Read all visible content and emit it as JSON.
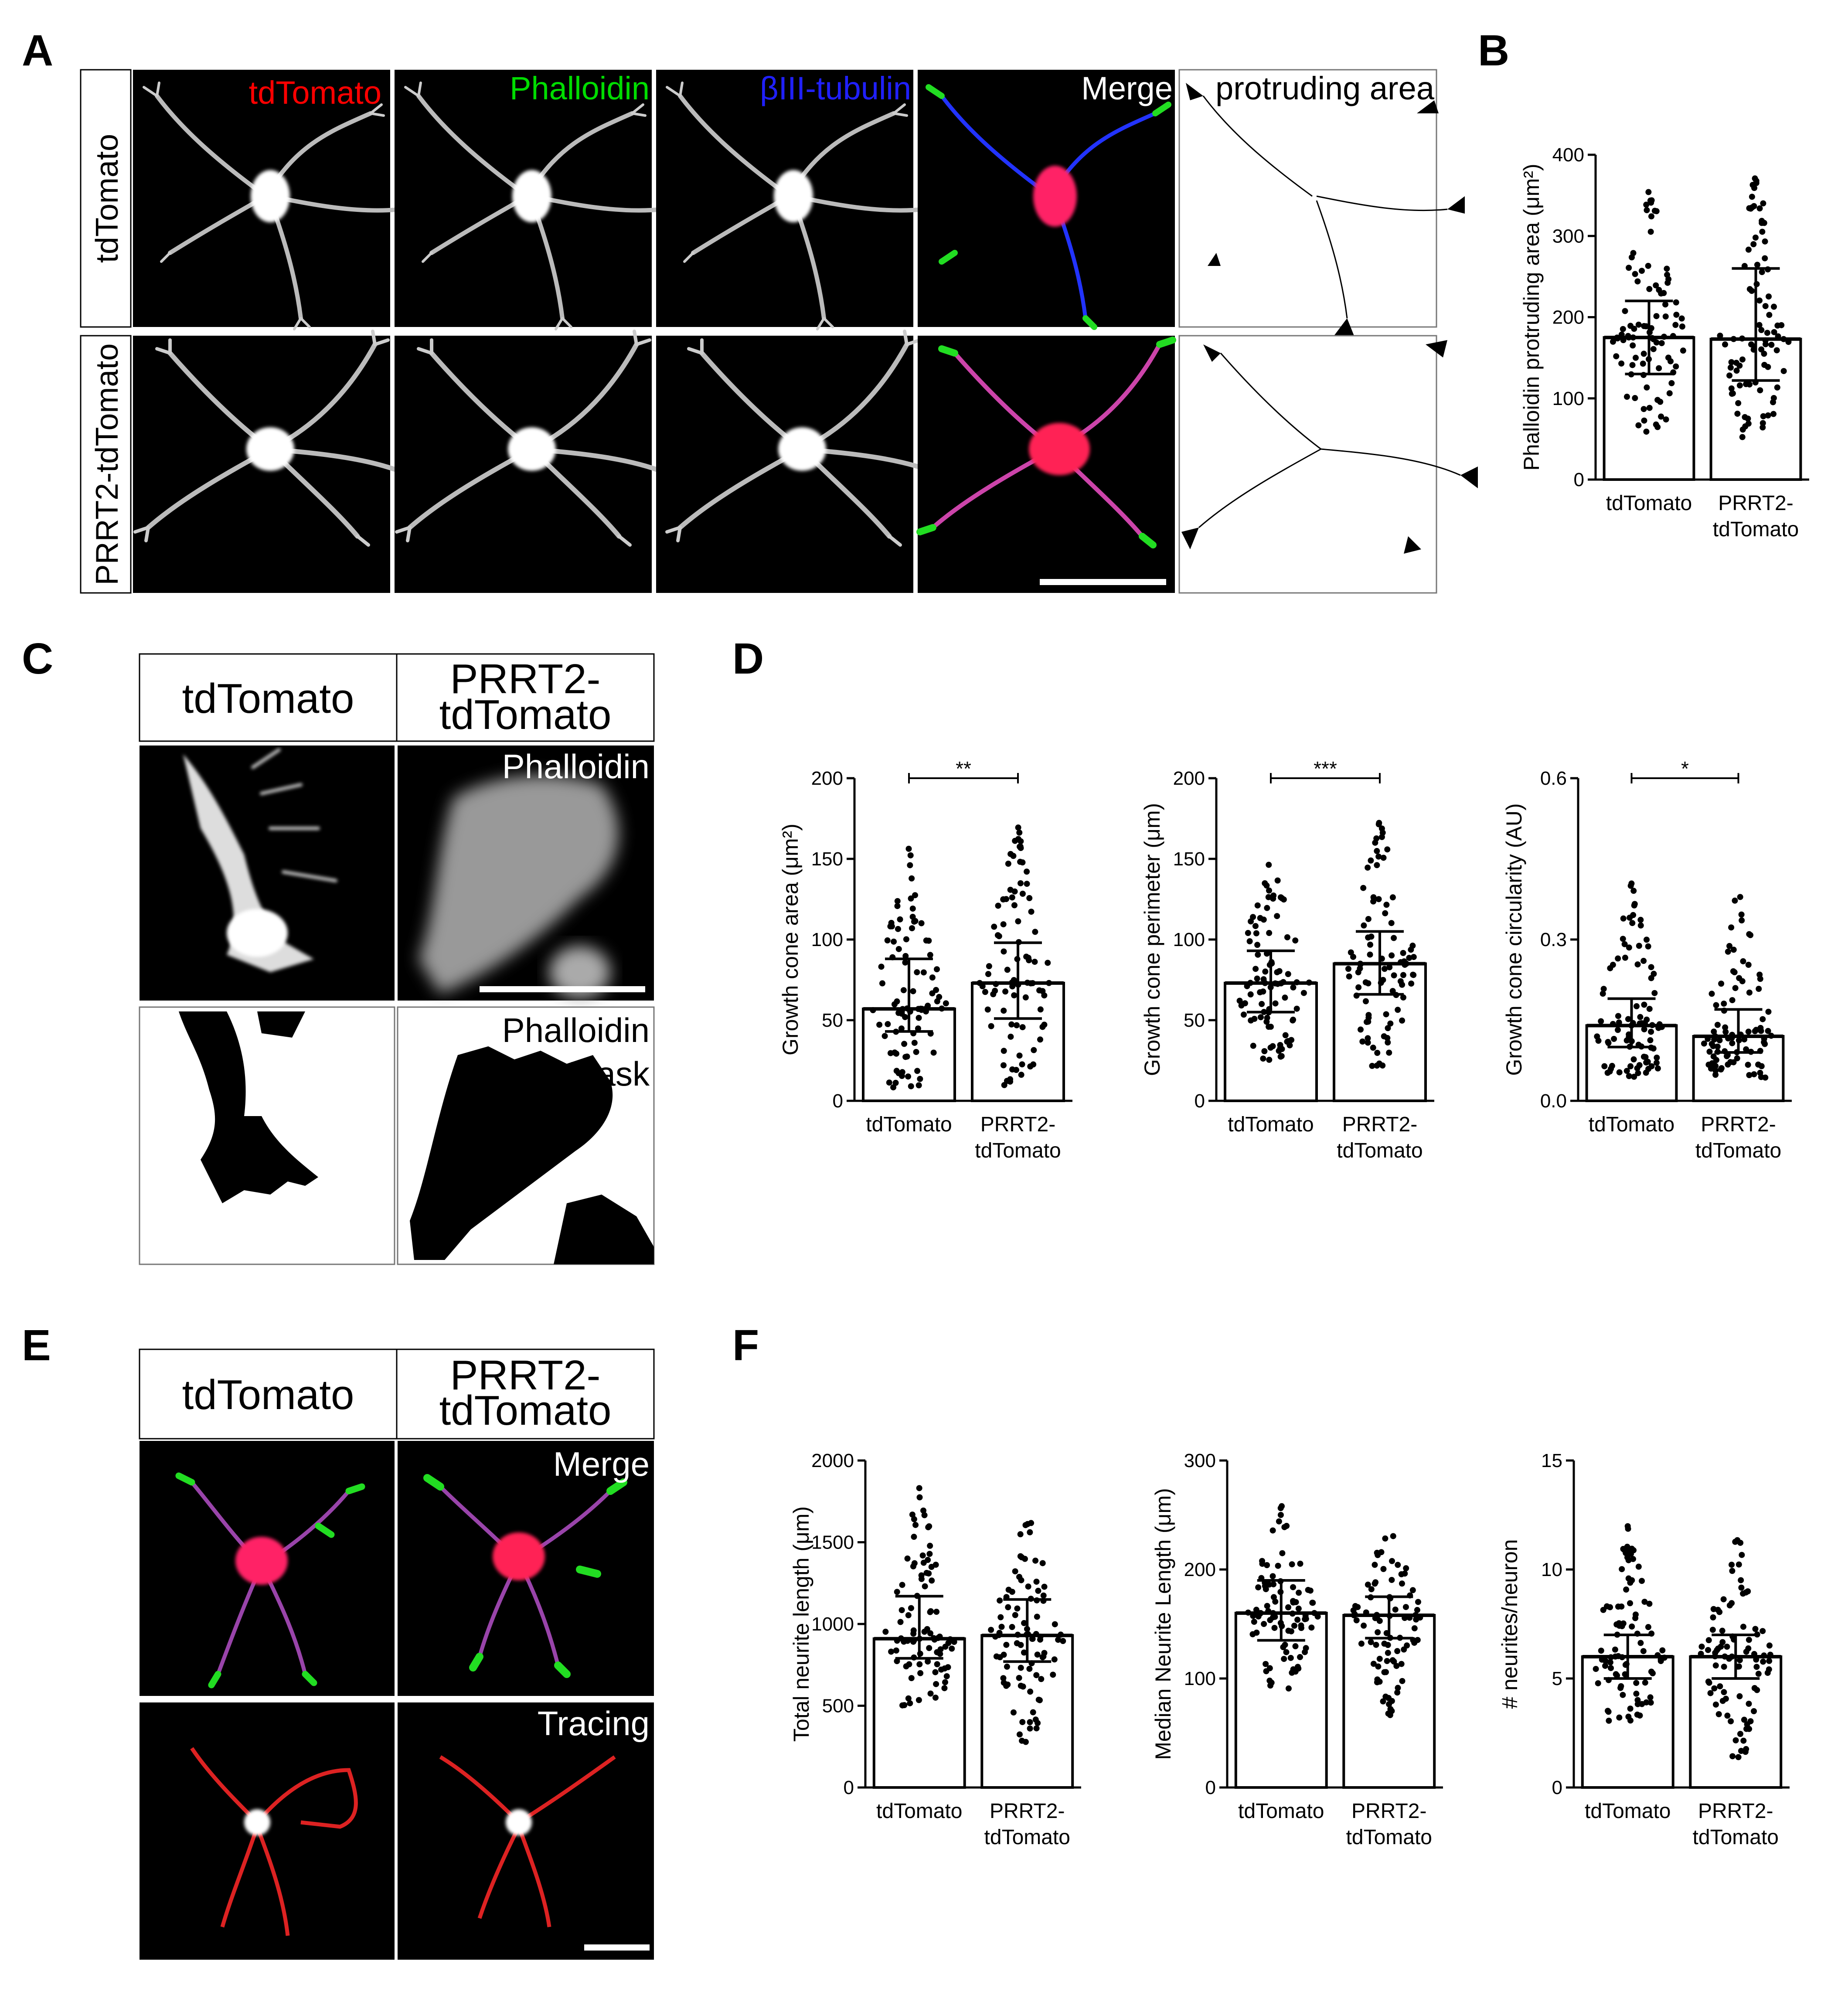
{
  "panel_letters": [
    "A",
    "B",
    "C",
    "D",
    "E",
    "F"
  ],
  "panelA": {
    "row_labels": [
      "tdTomato",
      "PRRT2-tdTomato"
    ],
    "channels": [
      {
        "label": "tdTomato",
        "color": "#ff0000"
      },
      {
        "label": "Phalloidin",
        "color": "#00dd00"
      },
      {
        "label": "βIII-tubulin",
        "color": "#2020ff"
      },
      {
        "label": "Merge",
        "color": "#ffffff"
      },
      {
        "label": "protruding area",
        "color": "#000000"
      }
    ]
  },
  "panelC": {
    "headers": [
      "tdTomato",
      "PRRT2-",
      "tdTomato"
    ],
    "labels": {
      "phalloidin": "Phalloidin",
      "mask1": "Phalloidin",
      "mask2": "Mask"
    }
  },
  "panelE": {
    "headers": [
      "tdTomato",
      "PRRT2-",
      "tdTomato"
    ],
    "labels": {
      "merge": "Merge",
      "tracing": "Tracing"
    }
  },
  "chart_data": [
    {
      "id": "B",
      "type": "bar",
      "categories": [
        "tdTomato",
        "PRRT2-tdTomato"
      ],
      "ylabel": "Phalloidin protruding area (μm²)",
      "ylim": [
        0,
        400
      ],
      "yticks": [
        0,
        100,
        200,
        300,
        400
      ],
      "series": [
        {
          "values": [
            175,
            173
          ]
        }
      ],
      "error": [
        [
          130,
          220
        ],
        [
          122,
          260
        ]
      ],
      "points_range": [
        [
          58,
          370
        ],
        [
          48,
          382
        ]
      ],
      "significance": ""
    },
    {
      "id": "D1",
      "type": "bar",
      "categories": [
        "tdTomato",
        "PRRT2-tdTomato"
      ],
      "ylabel": "Growth cone area (μm²)",
      "ylim": [
        0,
        200
      ],
      "yticks": [
        0,
        50,
        100,
        150,
        200
      ],
      "series": [
        {
          "values": [
            57,
            73
          ]
        }
      ],
      "error": [
        [
          43,
          88
        ],
        [
          51,
          98
        ]
      ],
      "points_range": [
        [
          8,
          157
        ],
        [
          8,
          172
        ]
      ],
      "significance": "**"
    },
    {
      "id": "D2",
      "type": "bar",
      "categories": [
        "tdTomato",
        "PRRT2-tdTomato"
      ],
      "ylabel": "Growth cone perimeter (μm)",
      "ylim": [
        0,
        200
      ],
      "yticks": [
        0,
        50,
        100,
        150,
        200
      ],
      "series": [
        {
          "values": [
            73,
            85
          ]
        }
      ],
      "error": [
        [
          55,
          93
        ],
        [
          66,
          105
        ]
      ],
      "points_range": [
        [
          25,
          153
        ],
        [
          20,
          175
        ]
      ],
      "significance": "***"
    },
    {
      "id": "D3",
      "type": "bar",
      "categories": [
        "tdTomato",
        "PRRT2-tdTomato"
      ],
      "ylabel": "Growth cone circularity (AU)",
      "ylim": [
        0,
        0.6
      ],
      "yticks": [
        "0.0",
        "0.3",
        "0.6"
      ],
      "series": [
        {
          "values": [
            0.14,
            0.12
          ]
        }
      ],
      "error": [
        [
          0.1,
          0.19
        ],
        [
          0.09,
          0.17
        ]
      ],
      "points_range": [
        [
          0.04,
          0.41
        ],
        [
          0.04,
          0.4
        ]
      ],
      "significance": "*"
    },
    {
      "id": "F1",
      "type": "bar",
      "categories": [
        "tdTomato",
        "PRRT2-tdTomato"
      ],
      "ylabel": "Total neurite length (μm)",
      "ylim": [
        0,
        2000
      ],
      "yticks": [
        0,
        500,
        1000,
        1500,
        2000
      ],
      "series": [
        {
          "values": [
            910,
            930
          ]
        }
      ],
      "error": [
        [
          790,
          1170
        ],
        [
          770,
          1150
        ]
      ],
      "points_range": [
        [
          500,
          1840
        ],
        [
          260,
          1700
        ]
      ],
      "significance": ""
    },
    {
      "id": "F2",
      "type": "bar",
      "categories": [
        "tdTomato",
        "PRRT2-tdTomato"
      ],
      "ylabel": "Median Neurite Length (μm)",
      "ylim": [
        0,
        300
      ],
      "yticks": [
        0,
        100,
        200,
        300
      ],
      "series": [
        {
          "values": [
            160,
            158
          ]
        }
      ],
      "error": [
        [
          135,
          190
        ],
        [
          137,
          175
        ]
      ],
      "points_range": [
        [
          90,
          262
        ],
        [
          63,
          250
        ]
      ],
      "significance": ""
    },
    {
      "id": "F3",
      "type": "bar",
      "categories": [
        "tdTomato",
        "PRRT2-tdTomato"
      ],
      "ylabel": "# neurites/neuron",
      "ylim": [
        0,
        15
      ],
      "yticks": [
        0,
        5,
        10,
        15
      ],
      "series": [
        {
          "values": [
            6,
            6
          ]
        }
      ],
      "error": [
        [
          5,
          7
        ],
        [
          5,
          7
        ]
      ],
      "points_range": [
        [
          3,
          12
        ],
        [
          1,
          12
        ]
      ],
      "significance": ""
    }
  ]
}
